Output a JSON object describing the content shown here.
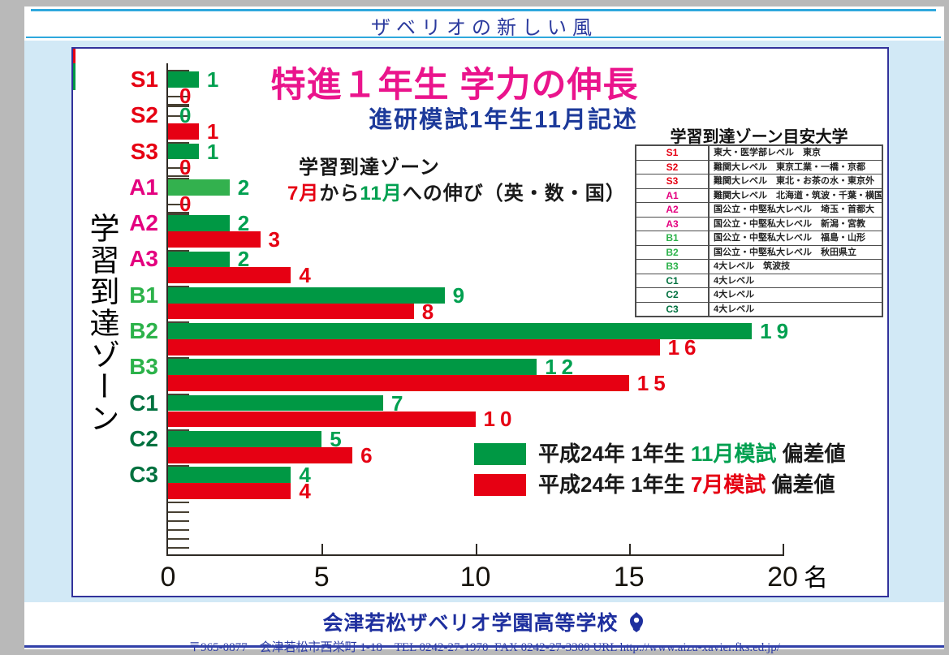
{
  "page": {
    "header_title": "ザベリオの新しい風",
    "footer": {
      "school_name": "会津若松ザベリオ学園高等学校",
      "address": "〒965-0877　会津若松市西栄町 1-18　TEL 0242-27-1970  FAX 0242-27-3300 URL ",
      "url": "http://www.aizu-xavier.fks.ed.jp/"
    }
  },
  "chart_data": {
    "type": "bar",
    "orientation": "horizontal-grouped",
    "title": "特進１年生 学力の伸長",
    "subtitle": "進研模試1年生11月記述",
    "y_axis_title": "学習到達ゾーン",
    "x_unit": "名",
    "xlim": [
      0,
      20
    ],
    "xticks": [
      0,
      5,
      10,
      15,
      20
    ],
    "grid": false,
    "legend_position": "bottom-right",
    "categories": [
      "S1",
      "S2",
      "S3",
      "A1",
      "A2",
      "A3",
      "B1",
      "B2",
      "B3",
      "C1",
      "C2",
      "C3"
    ],
    "category_colors": [
      "#e60012",
      "#e60012",
      "#e60012",
      "#e4007f",
      "#e4007f",
      "#e4007f",
      "#2cb24a",
      "#2cb24a",
      "#2cb24a",
      "#00713f",
      "#00713f",
      "#00713f"
    ],
    "series": [
      {
        "name": "平成24年 1年生 11月模試 偏差値",
        "color": "#009844",
        "label_color": "#00a050",
        "values": [
          1,
          0,
          1,
          2,
          2,
          2,
          9,
          19,
          12,
          7,
          5,
          4
        ]
      },
      {
        "name": "平成24年 1年生 7月模試 偏差値",
        "color": "#e60013",
        "label_color": "#e60013",
        "values": [
          0,
          1,
          0,
          0,
          3,
          4,
          8,
          16,
          15,
          10,
          6,
          4
        ]
      }
    ],
    "bar_color_overrides": [
      {
        "category": "A1",
        "series_index": 0,
        "color": "#33b14e"
      }
    ]
  },
  "annotation": {
    "line1": "学習到達ゾーン",
    "line2_parts": [
      {
        "text": "7月",
        "color": "#e60013"
      },
      {
        "text": "から",
        "color": "#1a1a1a"
      },
      {
        "text": "11月",
        "color": "#00a050"
      },
      {
        "text": "への伸び（英・数・国）",
        "color": "#1a1a1a"
      }
    ]
  },
  "legend": {
    "rows": [
      {
        "swatch_color": "#009844",
        "parts": [
          {
            "text": "平成24年 1年生 ",
            "color": "#1a1a1a"
          },
          {
            "text": "11月模試",
            "color": "#00a050"
          },
          {
            "text": " 偏差値",
            "color": "#1a1a1a"
          }
        ]
      },
      {
        "swatch_color": "#e60013",
        "parts": [
          {
            "text": "平成24年 1年生 ",
            "color": "#1a1a1a"
          },
          {
            "text": "7月模試",
            "color": "#e60013"
          },
          {
            "text": " 偏差値",
            "color": "#1a1a1a"
          }
        ]
      }
    ]
  },
  "uni_table": {
    "title": "学習到達ゾーン目安大学",
    "rows": [
      {
        "zone": "S1",
        "zone_color": "#e60012",
        "desc": "東大・医学部レベル　東京"
      },
      {
        "zone": "S2",
        "zone_color": "#e60012",
        "desc": "難関大レベル　東京工業・一橋・京都"
      },
      {
        "zone": "S3",
        "zone_color": "#e60012",
        "desc": "難関大レベル　東北・お茶の水・東京外"
      },
      {
        "zone": "A1",
        "zone_color": "#e4007f",
        "desc": "難関大レベル　北海道・筑波・千葉・横国"
      },
      {
        "zone": "A2",
        "zone_color": "#e4007f",
        "desc": "国公立・中堅私大レベル　埼玉・首都大"
      },
      {
        "zone": "A3",
        "zone_color": "#e4007f",
        "desc": "国公立・中堅私大レベル　新潟・宮教"
      },
      {
        "zone": "B1",
        "zone_color": "#2cb24a",
        "desc": "国公立・中堅私大レベル　福島・山形"
      },
      {
        "zone": "B2",
        "zone_color": "#2cb24a",
        "desc": "国公立・中堅私大レベル　秋田県立"
      },
      {
        "zone": "B3",
        "zone_color": "#2cb24a",
        "desc": "4大レベル　筑波技"
      },
      {
        "zone": "C1",
        "zone_color": "#00713f",
        "desc": "4大レベル"
      },
      {
        "zone": "C2",
        "zone_color": "#00713f",
        "desc": "4大レベル"
      },
      {
        "zone": "C3",
        "zone_color": "#00713f",
        "desc": "4大レベル"
      }
    ]
  }
}
